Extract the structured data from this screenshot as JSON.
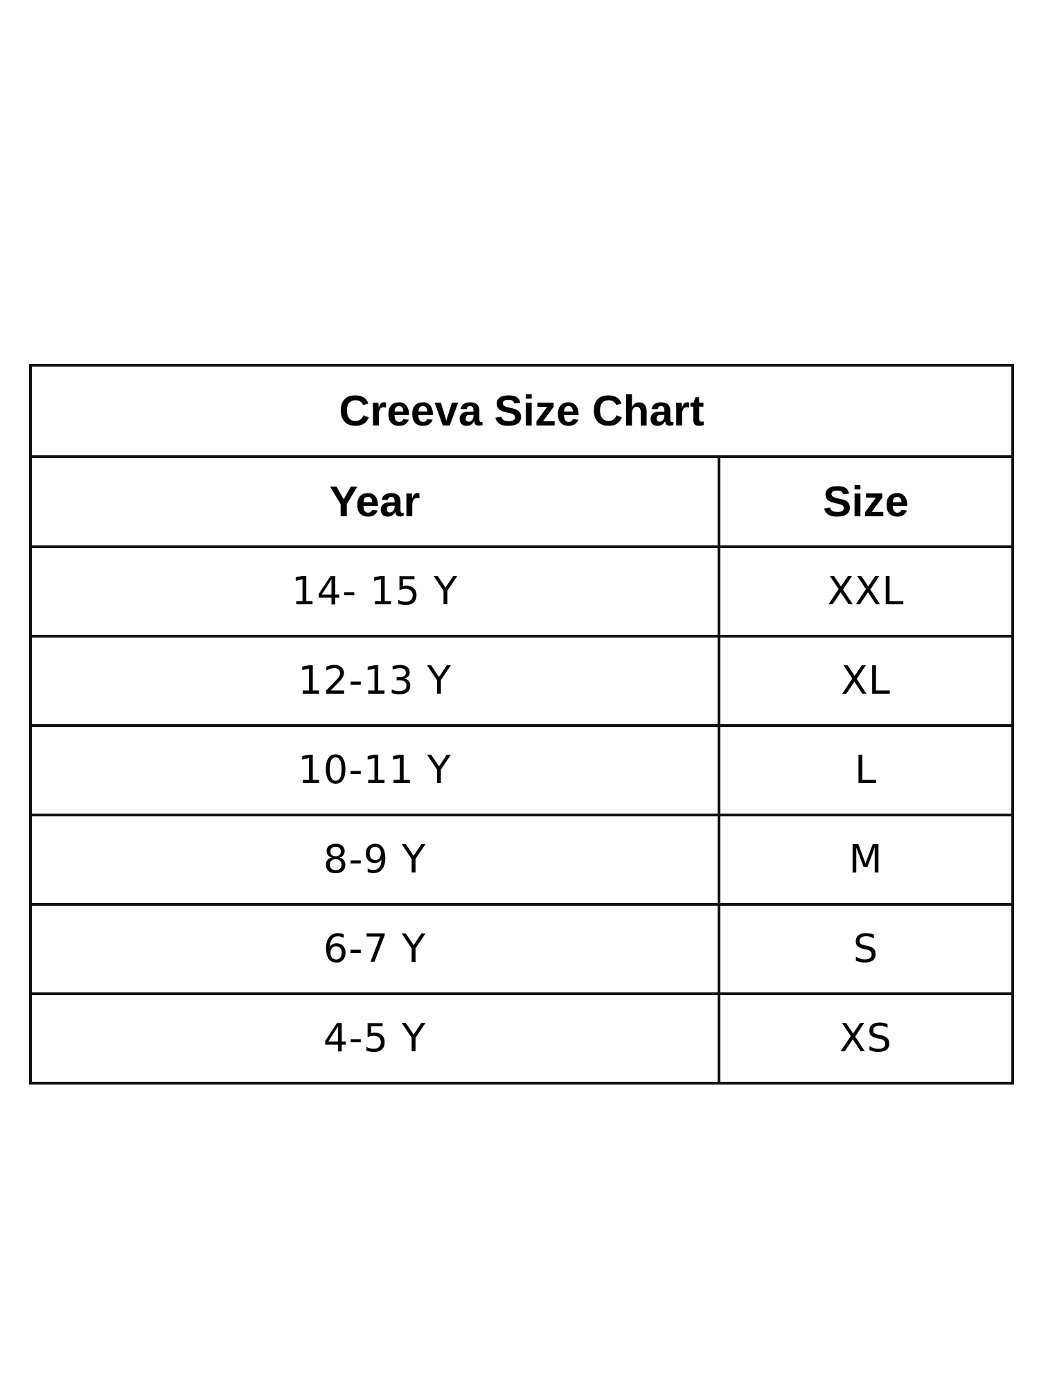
{
  "title": "Creeva Size Chart",
  "headers": {
    "year": "Year",
    "size": "Size"
  },
  "rows": [
    {
      "year": "14- 15 Y",
      "size": "XXL"
    },
    {
      "year": "12-13 Y",
      "size": "XL"
    },
    {
      "year": "10-11 Y",
      "size": "L"
    },
    {
      "year": "8-9 Y",
      "size": "M"
    },
    {
      "year": "6-7 Y",
      "size": "S"
    },
    {
      "year": "4-5 Y",
      "size": "XS"
    }
  ]
}
